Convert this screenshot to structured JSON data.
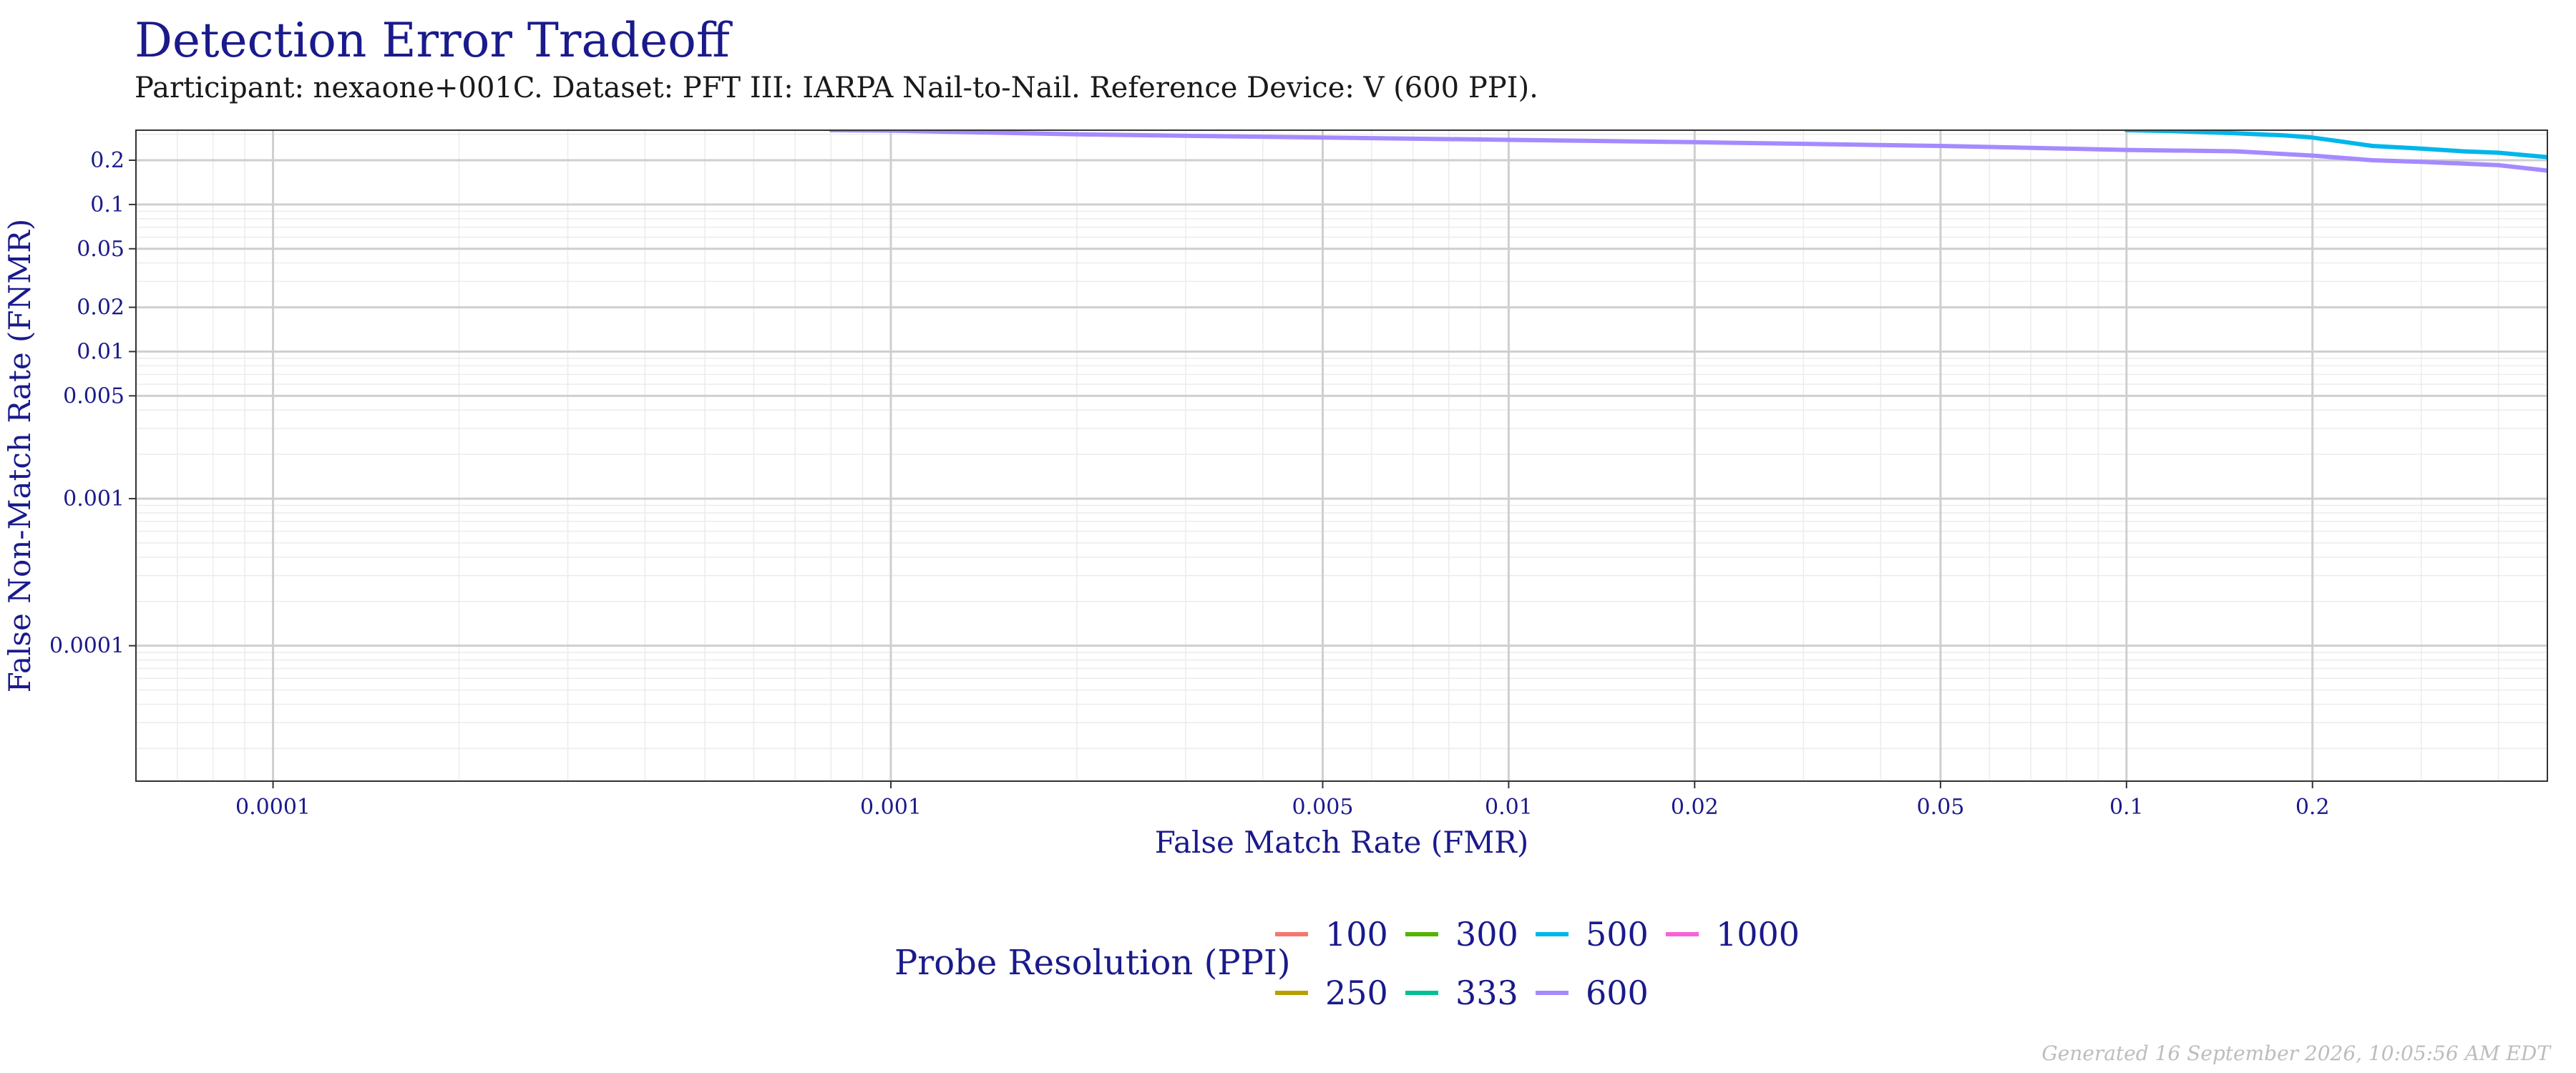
{
  "chart_data": {
    "type": "line",
    "title": "Detection Error Tradeoff",
    "subtitle": "Participant: nexaone+001C. Dataset: PFT III: IARPA Nail-to-Nail. Reference Device: V (600 PPI).",
    "xlabel": "False Match Rate (FMR)",
    "ylabel": "False Non-Match Rate (FNMR)",
    "x_scale": "log",
    "y_scale": "log",
    "xlim": [
      6e-05,
      0.48
    ],
    "ylim": [
      1.2e-05,
      0.32
    ],
    "x_ticks": [
      {
        "value": 0.0001,
        "label": "0.0001"
      },
      {
        "value": 0.001,
        "label": "0.001"
      },
      {
        "value": 0.005,
        "label": "0.005"
      },
      {
        "value": 0.01,
        "label": "0.01"
      },
      {
        "value": 0.02,
        "label": "0.02"
      },
      {
        "value": 0.05,
        "label": "0.05"
      },
      {
        "value": 0.1,
        "label": "0.1"
      },
      {
        "value": 0.2,
        "label": "0.2"
      }
    ],
    "y_ticks": [
      {
        "value": 0.0001,
        "label": "0.0001"
      },
      {
        "value": 0.001,
        "label": "0.001"
      },
      {
        "value": 0.005,
        "label": "0.005"
      },
      {
        "value": 0.01,
        "label": "0.01"
      },
      {
        "value": 0.02,
        "label": "0.02"
      },
      {
        "value": 0.05,
        "label": "0.05"
      },
      {
        "value": 0.1,
        "label": "0.1"
      },
      {
        "value": 0.2,
        "label": "0.2"
      }
    ],
    "grid": true,
    "legend": {
      "title": "Probe Resolution (PPI)",
      "position": "bottom",
      "entries": [
        {
          "label": "100",
          "color": "#f8766d"
        },
        {
          "label": "250",
          "color": "#b79f00"
        },
        {
          "label": "300",
          "color": "#53b400"
        },
        {
          "label": "333",
          "color": "#00c094"
        },
        {
          "label": "500",
          "color": "#00b6eb"
        },
        {
          "label": "600",
          "color": "#a58aff"
        },
        {
          "label": "1000",
          "color": "#fb61d7"
        }
      ]
    },
    "series": [
      {
        "name": "500",
        "color": "#00b6eb",
        "x": [
          0.1,
          0.12,
          0.15,
          0.18,
          0.2,
          0.22,
          0.25,
          0.3,
          0.35,
          0.4,
          0.45,
          0.48
        ],
        "y": [
          0.32,
          0.315,
          0.305,
          0.295,
          0.285,
          0.27,
          0.25,
          0.24,
          0.23,
          0.225,
          0.215,
          0.21
        ]
      },
      {
        "name": "600",
        "color": "#a58aff",
        "x": [
          0.0008,
          0.001,
          0.002,
          0.005,
          0.01,
          0.02,
          0.05,
          0.1,
          0.15,
          0.2,
          0.25,
          0.3,
          0.4,
          0.48
        ],
        "y": [
          0.32,
          0.318,
          0.3,
          0.285,
          0.275,
          0.265,
          0.25,
          0.235,
          0.23,
          0.215,
          0.2,
          0.195,
          0.185,
          0.17
        ]
      }
    ]
  },
  "footer": "Generated 16 September 2026, 10:05:56 AM EDT"
}
